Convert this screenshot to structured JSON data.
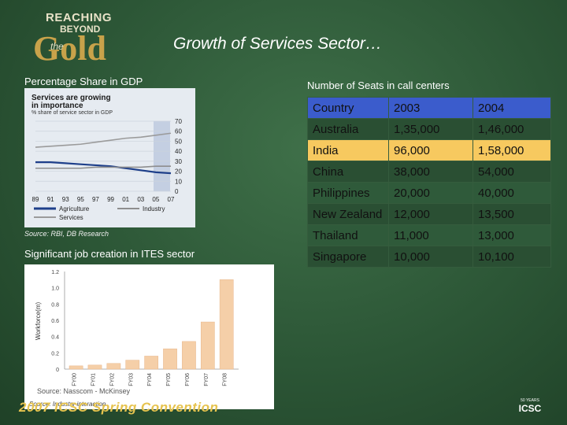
{
  "logo": {
    "line1": "REACHING",
    "line2": "BEYOND",
    "the": "the",
    "word": "Gold"
  },
  "title": "Growth of Services Sector…",
  "left_label": "Percentage Share in GDP",
  "right_label": "Number of Seats in call centers",
  "gdp_chart": {
    "headline": "Services are growing in importance",
    "subtitle": "% share of service sector in GDP",
    "source": "Source: RBI, DB Research"
  },
  "chart_data": [
    {
      "type": "line",
      "title": "Services are growing in importance",
      "subtitle": "% share of service sector in GDP",
      "x": [
        "89",
        "91",
        "93",
        "95",
        "97",
        "99",
        "01",
        "03",
        "05",
        "07"
      ],
      "series": [
        {
          "name": "Agriculture",
          "color": "#1e3f8a",
          "values": [
            29,
            29,
            28,
            27,
            26,
            25,
            23,
            21,
            19,
            18
          ]
        },
        {
          "name": "Industry",
          "color": "#8e8e8e",
          "values": [
            23,
            23,
            23,
            23,
            24,
            24,
            24,
            24,
            25,
            25
          ]
        },
        {
          "name": "Services",
          "color": "#9b9b9b",
          "values": [
            44,
            45,
            46,
            47,
            49,
            51,
            53,
            54,
            56,
            58
          ]
        }
      ],
      "yticks": [
        "0",
        "10",
        "20",
        "30",
        "40",
        "50",
        "60",
        "70"
      ],
      "ylim": [
        0,
        70
      ]
    },
    {
      "type": "bar",
      "ylabel": "Workforce(m)",
      "categories": [
        "FY00",
        "FY01",
        "FY02",
        "FY03",
        "FY04",
        "FY05",
        "FY06",
        "FY07",
        "FY08"
      ],
      "values": [
        0.04,
        0.05,
        0.07,
        0.11,
        0.16,
        0.25,
        0.34,
        0.58,
        1.1
      ],
      "yticks": [
        "0",
        "0.2",
        "0.4",
        "0.6",
        "0.8",
        "1.0",
        "1.2"
      ],
      "ylim": [
        0,
        1.2
      ],
      "bar_color": "#f5cfa8",
      "title": "Significant job creation in ITES sector",
      "source": "Source: Nasscom - McKinsey",
      "source2": "Source: Industry interaction"
    }
  ],
  "table": {
    "header": [
      "Country",
      "2003",
      "2004"
    ],
    "rows": [
      [
        "Australia",
        "1,35,000",
        "1,46,000"
      ],
      [
        "India",
        "96,000",
        "1,58,000"
      ],
      [
        "China",
        "38,000",
        "54,000"
      ],
      [
        "Philippines",
        "20,000",
        "40,000"
      ],
      [
        "New Zealand",
        "12,000",
        "13,500"
      ],
      [
        "Thailand",
        "11,000",
        "13,000"
      ],
      [
        "Singapore",
        "10,000",
        "10,100"
      ]
    ],
    "header_color": "#3b5ccc",
    "highlight_color": "#f7c95f"
  },
  "footer": "2007 ICSC Spring Convention",
  "badge": {
    "years": "50 YEARS",
    "name": "ICSC"
  }
}
